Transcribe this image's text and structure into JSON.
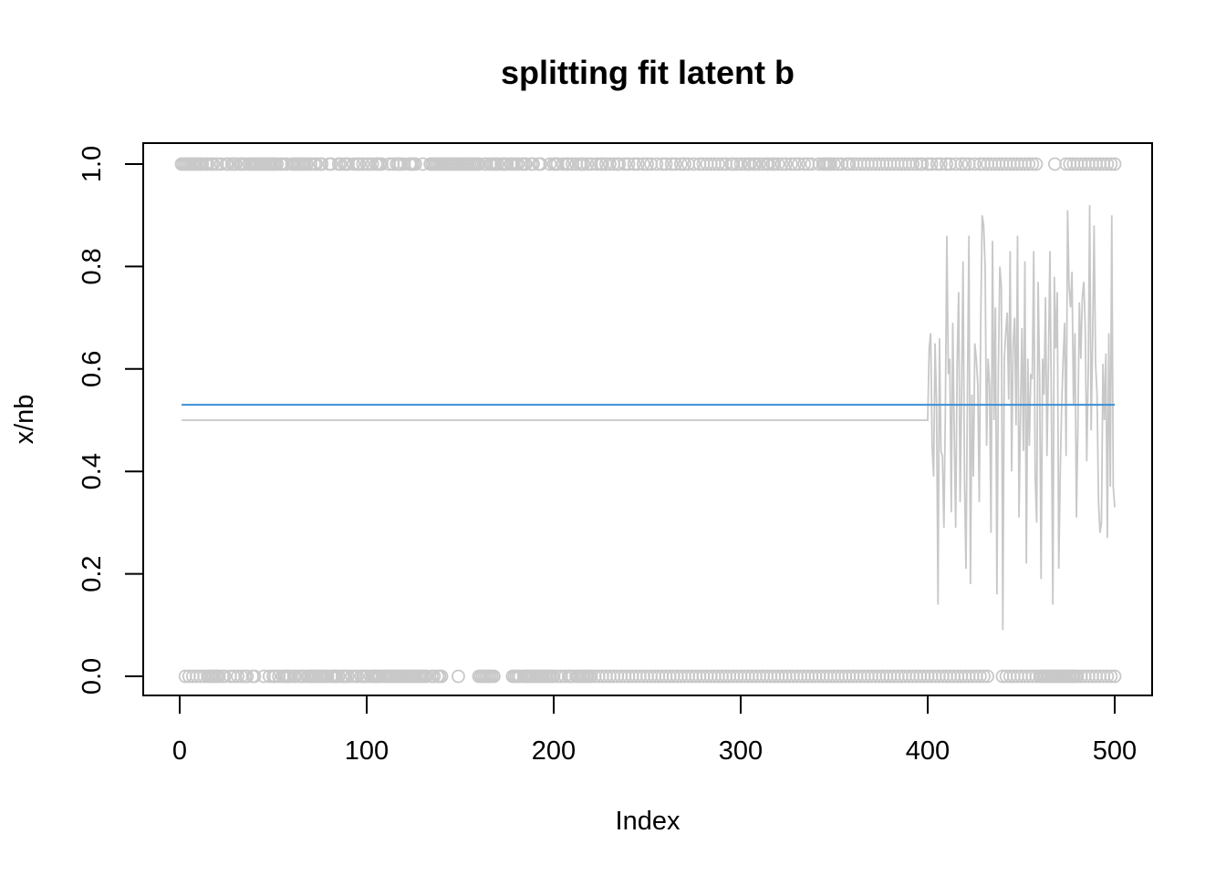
{
  "chart_data": {
    "type": "scatter",
    "title": "splitting fit latent b",
    "xlabel": "Index",
    "ylabel": "x/nb",
    "xlim": [
      0,
      500
    ],
    "ylim": [
      0,
      1
    ],
    "x_ticks": [
      "0",
      "100",
      "200",
      "300",
      "400",
      "500"
    ],
    "y_ticks": [
      "0.0",
      "0.2",
      "0.4",
      "0.6",
      "0.8",
      "1.0"
    ],
    "grid": false,
    "legend": "none",
    "colors": {
      "points": "#c8c8c8",
      "gray_line": "#c8c8c8",
      "blue_line": "#3a8fd6"
    },
    "points_y1_x": [
      1,
      2,
      3,
      4,
      5,
      6,
      7,
      8,
      9,
      10,
      11,
      12,
      14,
      15,
      17,
      18,
      20,
      22,
      25,
      26,
      28,
      29,
      30,
      32,
      33,
      34,
      35,
      37,
      38,
      39,
      40,
      41,
      42,
      43,
      44,
      45,
      46,
      47,
      48,
      49,
      50,
      51,
      52,
      54,
      55,
      57,
      60,
      61,
      62,
      63,
      64,
      65,
      66,
      67,
      68,
      70,
      72,
      73,
      75,
      76,
      80,
      81,
      85,
      86,
      88,
      89,
      90,
      93,
      95,
      96,
      98,
      100,
      101,
      103,
      105,
      106,
      107,
      108,
      112,
      114,
      116,
      117,
      118,
      120,
      123,
      124,
      125,
      126,
      130,
      134,
      135,
      136,
      137,
      138,
      139,
      140,
      141,
      142,
      143,
      144,
      145,
      146,
      147,
      148,
      149,
      150,
      151,
      152,
      153,
      154,
      155,
      156,
      157,
      158,
      159,
      160,
      163,
      164,
      166,
      167,
      168,
      169,
      170,
      172,
      173,
      174,
      175,
      177,
      178,
      180,
      181,
      183,
      184,
      185,
      188,
      189,
      192,
      193,
      198,
      200,
      201,
      202,
      205,
      207,
      208,
      210,
      212,
      214,
      215,
      216,
      218,
      220,
      223,
      225,
      226,
      228,
      230,
      232,
      234,
      235,
      238,
      240,
      243,
      245,
      248,
      250,
      252,
      255,
      258,
      260,
      263,
      265,
      268,
      270,
      272,
      275,
      278,
      280,
      282,
      284,
      286,
      288,
      290,
      292,
      295,
      296,
      298,
      300,
      302,
      304,
      305,
      307,
      308,
      310,
      312,
      314,
      315,
      317,
      318,
      320,
      322,
      324,
      327,
      329,
      331,
      334,
      336,
      338,
      342,
      344,
      345,
      346,
      347,
      348,
      350,
      352,
      354,
      357,
      358,
      360,
      362,
      364,
      366,
      368,
      370,
      372,
      374,
      376,
      378,
      380,
      382,
      384,
      386,
      388,
      390,
      392,
      394,
      396,
      397,
      400,
      402,
      405,
      407,
      410,
      412,
      415,
      418,
      420,
      422,
      425,
      428,
      430,
      432,
      434,
      436,
      438,
      440,
      442,
      444,
      446,
      448,
      450,
      452,
      454,
      456,
      458,
      468,
      474,
      476,
      478,
      480,
      482,
      484,
      486,
      488,
      490,
      492,
      494,
      496,
      498,
      500
    ],
    "points_y0_x": [
      3,
      5,
      7,
      9,
      11,
      13,
      15,
      16,
      17,
      18,
      19,
      20,
      21,
      23,
      24,
      27,
      29,
      31,
      33,
      35,
      36,
      39,
      40,
      45,
      48,
      50,
      51,
      53,
      55,
      56,
      57,
      58,
      59,
      61,
      62,
      64,
      65,
      66,
      68,
      69,
      70,
      71,
      72,
      73,
      74,
      75,
      76,
      77,
      78,
      79,
      81,
      82,
      83,
      84,
      85,
      87,
      88,
      89,
      90,
      92,
      94,
      95,
      97,
      98,
      99,
      100,
      102,
      103,
      104,
      105,
      106,
      107,
      109,
      110,
      111,
      112,
      113,
      114,
      115,
      116,
      117,
      118,
      119,
      120,
      121,
      122,
      123,
      124,
      125,
      126,
      127,
      128,
      129,
      130,
      131,
      132,
      135,
      136,
      138,
      139,
      140,
      149,
      160,
      161,
      162,
      163,
      164,
      165,
      166,
      167,
      168,
      178,
      179,
      180,
      181,
      182,
      184,
      185,
      186,
      187,
      188,
      189,
      190,
      191,
      192,
      193,
      194,
      195,
      196,
      197,
      198,
      199,
      200,
      202,
      204,
      206,
      208,
      209,
      210,
      212,
      213,
      214,
      215,
      216,
      217,
      218,
      219,
      220,
      222,
      224,
      226,
      228,
      230,
      232,
      234,
      236,
      238,
      240,
      242,
      244,
      246,
      248,
      250,
      252,
      254,
      256,
      258,
      260,
      262,
      264,
      266,
      268,
      270,
      272,
      274,
      276,
      278,
      280,
      282,
      284,
      286,
      288,
      290,
      292,
      294,
      296,
      298,
      300,
      302,
      304,
      306,
      308,
      310,
      312,
      314,
      316,
      318,
      320,
      322,
      324,
      326,
      328,
      330,
      332,
      334,
      336,
      338,
      340,
      342,
      344,
      346,
      348,
      350,
      352,
      354,
      356,
      358,
      360,
      362,
      364,
      366,
      368,
      370,
      372,
      374,
      376,
      378,
      380,
      382,
      384,
      386,
      388,
      390,
      392,
      394,
      396,
      398,
      400,
      402,
      404,
      406,
      408,
      410,
      412,
      414,
      416,
      418,
      420,
      422,
      424,
      426,
      428,
      430,
      432,
      440,
      442,
      444,
      446,
      448,
      450,
      452,
      454,
      456,
      458,
      460,
      461,
      462,
      463,
      464,
      465,
      466,
      467,
      468,
      469,
      470,
      471,
      472,
      473,
      474,
      475,
      476,
      477,
      478,
      479,
      480,
      482,
      484,
      486,
      488,
      490,
      492,
      494,
      496,
      498,
      500
    ],
    "blue_line": {
      "x": [
        1,
        500
      ],
      "y": [
        0.53,
        0.53
      ]
    },
    "gray_line_flat": {
      "x": [
        1,
        400
      ],
      "y": [
        0.5,
        0.5
      ]
    },
    "gray_line_noisy_y": [
      0.5,
      0.64,
      0.67,
      0.45,
      0.39,
      0.65,
      0.53,
      0.14,
      0.66,
      0.44,
      0.43,
      0.29,
      0.52,
      0.86,
      0.59,
      0.62,
      0.32,
      0.69,
      0.48,
      0.29,
      0.61,
      0.75,
      0.34,
      0.55,
      0.81,
      0.38,
      0.21,
      0.56,
      0.86,
      0.18,
      0.55,
      0.39,
      0.65,
      0.62,
      0.57,
      0.34,
      0.69,
      0.9,
      0.88,
      0.8,
      0.45,
      0.62,
      0.57,
      0.28,
      0.85,
      0.5,
      0.72,
      0.16,
      0.6,
      0.8,
      0.76,
      0.09,
      0.62,
      0.67,
      0.71,
      0.54,
      0.83,
      0.4,
      0.65,
      0.7,
      0.49,
      0.86,
      0.31,
      0.51,
      0.68,
      0.44,
      0.81,
      0.22,
      0.62,
      0.45,
      0.59,
      0.58,
      0.83,
      0.39,
      0.3,
      0.77,
      0.58,
      0.19,
      0.62,
      0.55,
      0.74,
      0.43,
      0.61,
      0.83,
      0.52,
      0.14,
      0.78,
      0.64,
      0.75,
      0.21,
      0.4,
      0.53,
      0.62,
      0.69,
      0.43,
      0.91,
      0.76,
      0.72,
      0.79,
      0.53,
      0.67,
      0.31,
      0.49,
      0.73,
      0.62,
      0.74,
      0.77,
      0.68,
      0.42,
      0.59,
      0.92,
      0.48,
      0.66,
      0.88,
      0.61,
      0.55,
      0.34,
      0.28,
      0.3,
      0.61,
      0.5,
      0.63,
      0.27,
      0.67,
      0.37,
      0.9,
      0.37,
      0.33
    ]
  }
}
